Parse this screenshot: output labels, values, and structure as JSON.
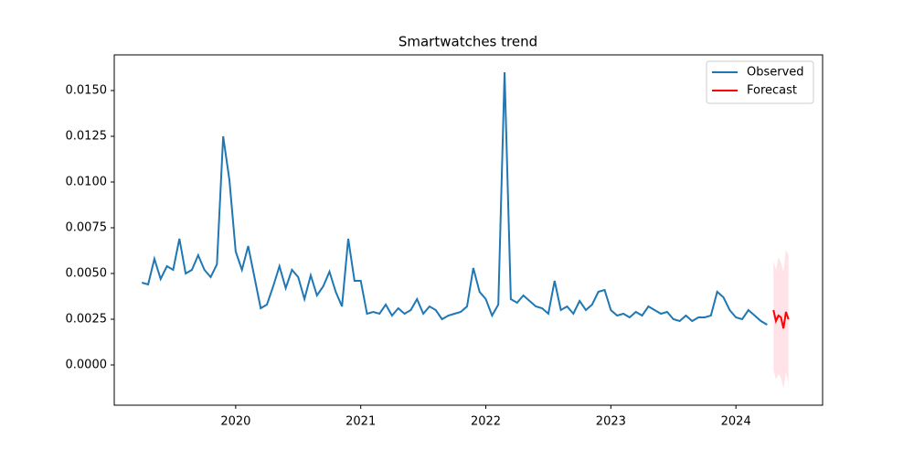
{
  "chart_data": {
    "type": "line",
    "title": "Smartwatches trend",
    "xlim": [
      2019.029,
      2024.693
    ],
    "xticks": [
      2020,
      2021,
      2022,
      2023,
      2024
    ],
    "ylim": [
      -0.0022,
      0.01695
    ],
    "yticks": [
      {
        "value": 0,
        "label": "0.0000"
      },
      {
        "value": 0.0025,
        "label": "0.0025"
      },
      {
        "value": 0.005,
        "label": "0.0050"
      },
      {
        "value": 0.0075,
        "label": "0.0075"
      },
      {
        "value": 0.01,
        "label": "0.0100"
      },
      {
        "value": 0.0125,
        "label": "0.0125"
      },
      {
        "value": 0.015,
        "label": "0.0150"
      }
    ],
    "legend": "upper right",
    "series": [
      {
        "name": "Observed",
        "color": "#1f77b4",
        "x": [
          2019.25,
          2019.3,
          2019.35,
          2019.4,
          2019.45,
          2019.5,
          2019.55,
          2019.6,
          2019.65,
          2019.7,
          2019.75,
          2019.8,
          2019.85,
          2019.9,
          2019.95,
          2020.0,
          2020.05,
          2020.1,
          2020.15,
          2020.2,
          2020.25,
          2020.3,
          2020.35,
          2020.4,
          2020.45,
          2020.5,
          2020.55,
          2020.6,
          2020.65,
          2020.7,
          2020.75,
          2020.8,
          2020.85,
          2020.9,
          2020.95,
          2021.0,
          2021.05,
          2021.1,
          2021.15,
          2021.2,
          2021.25,
          2021.3,
          2021.35,
          2021.4,
          2021.45,
          2021.5,
          2021.55,
          2021.6,
          2021.65,
          2021.7,
          2021.75,
          2021.8,
          2021.85,
          2021.9,
          2021.95,
          2022.0,
          2022.05,
          2022.1,
          2022.15,
          2022.2,
          2022.25,
          2022.3,
          2022.35,
          2022.4,
          2022.45,
          2022.5,
          2022.55,
          2022.6,
          2022.65,
          2022.7,
          2022.75,
          2022.8,
          2022.85,
          2022.9,
          2022.95,
          2023.0,
          2023.05,
          2023.1,
          2023.15,
          2023.2,
          2023.25,
          2023.3,
          2023.35,
          2023.4,
          2023.45,
          2023.5,
          2023.55,
          2023.6,
          2023.65,
          2023.7,
          2023.75,
          2023.8,
          2023.85,
          2023.9,
          2023.95,
          2024.0,
          2024.05,
          2024.1,
          2024.15,
          2024.2,
          2024.25
        ],
        "values": [
          0.0045,
          0.0044,
          0.0058,
          0.0047,
          0.0054,
          0.0052,
          0.0069,
          0.005,
          0.0052,
          0.006,
          0.0052,
          0.0048,
          0.0055,
          0.0125,
          0.0101,
          0.0062,
          0.0052,
          0.0065,
          0.0048,
          0.0031,
          0.0033,
          0.0043,
          0.0054,
          0.0042,
          0.0052,
          0.0048,
          0.0036,
          0.0049,
          0.0038,
          0.0043,
          0.0051,
          0.004,
          0.0032,
          0.0069,
          0.0046,
          0.0046,
          0.0028,
          0.0029,
          0.0028,
          0.0033,
          0.0027,
          0.0031,
          0.0028,
          0.003,
          0.0036,
          0.0028,
          0.0032,
          0.003,
          0.0025,
          0.0027,
          0.0028,
          0.0029,
          0.0032,
          0.0053,
          0.004,
          0.0036,
          0.0027,
          0.0033,
          0.016,
          0.0036,
          0.0034,
          0.0038,
          0.0035,
          0.0032,
          0.0031,
          0.0028,
          0.0046,
          0.003,
          0.0032,
          0.0028,
          0.0035,
          0.003,
          0.0033,
          0.004,
          0.0041,
          0.003,
          0.0027,
          0.0028,
          0.0026,
          0.0029,
          0.0027,
          0.0032,
          0.003,
          0.0028,
          0.0029,
          0.0025,
          0.0024,
          0.0027,
          0.0024,
          0.0026,
          0.0026,
          0.0027,
          0.004,
          0.0037,
          0.003,
          0.0026,
          0.0025,
          0.003,
          0.0027,
          0.0024,
          0.0022
        ]
      },
      {
        "name": "Forecast",
        "color": "#ff0000",
        "band_color": "#ffc0cb",
        "x": [
          2024.3,
          2024.32,
          2024.34,
          2024.36,
          2024.38,
          2024.4,
          2024.42
        ],
        "values": [
          0.003,
          0.0024,
          0.0027,
          0.0026,
          0.002,
          0.0029,
          0.0025
        ],
        "lower": [
          -0.0003,
          -0.0008,
          -0.0005,
          -0.0007,
          -0.0013,
          -0.0004,
          -0.001
        ],
        "upper": [
          0.0057,
          0.0052,
          0.0059,
          0.0056,
          0.0051,
          0.0063,
          0.006
        ]
      }
    ]
  }
}
